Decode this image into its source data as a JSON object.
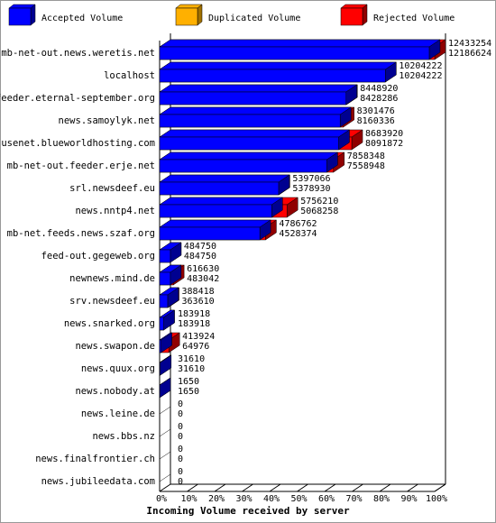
{
  "chart_data": {
    "type": "bar3d",
    "title": "Incoming Volume received by server",
    "legend": [
      {
        "name": "Accepted Volume",
        "color": "#0000ff"
      },
      {
        "name": "Duplicated Volume",
        "color": "#ffb000"
      },
      {
        "name": "Rejected Volume",
        "color": "#ff0000"
      }
    ],
    "categories": [
      "mb-net-out.news.weretis.net",
      "localhost",
      "feeder.eternal-september.org",
      "news.samoylyk.net",
      "usenet.blueworldhosting.com",
      "mb-net-out.feeder.erje.net",
      "srl.newsdeef.eu",
      "news.nntp4.net",
      "mb-net.feeds.news.szaf.org",
      "feed-out.gegeweb.org",
      "newnews.mind.de",
      "srv.newsdeef.eu",
      "news.snarked.org",
      "news.swapon.de",
      "news.quux.org",
      "news.nobody.at",
      "news.leine.de",
      "news.bbs.nz",
      "news.finalfrontier.ch",
      "news.jubileedata.com"
    ],
    "totals": [
      12433254,
      10204222,
      8448920,
      8301476,
      8683920,
      7858348,
      5397066,
      5756210,
      4786762,
      484750,
      616630,
      388418,
      183918,
      413924,
      31610,
      1650,
      0,
      0,
      0,
      0
    ],
    "accepted": [
      12186624,
      10204222,
      8428286,
      8160336,
      8091872,
      7558948,
      5378930,
      5068258,
      4528374,
      484750,
      483042,
      363610,
      183918,
      64976,
      31610,
      1650,
      0,
      0,
      0,
      0
    ],
    "xlim": [
      0,
      100
    ],
    "xticks": [
      {
        "value": 0,
        "label": "0%"
      },
      {
        "value": 10,
        "label": "10%"
      },
      {
        "value": 20,
        "label": "20%"
      },
      {
        "value": 30,
        "label": "30%"
      },
      {
        "value": 40,
        "label": "40%"
      },
      {
        "value": 50,
        "label": "50%"
      },
      {
        "value": 60,
        "label": "60%"
      },
      {
        "value": 70,
        "label": "70%"
      },
      {
        "value": 80,
        "label": "80%"
      },
      {
        "value": 90,
        "label": "90%"
      },
      {
        "value": 100,
        "label": "100%"
      }
    ]
  }
}
